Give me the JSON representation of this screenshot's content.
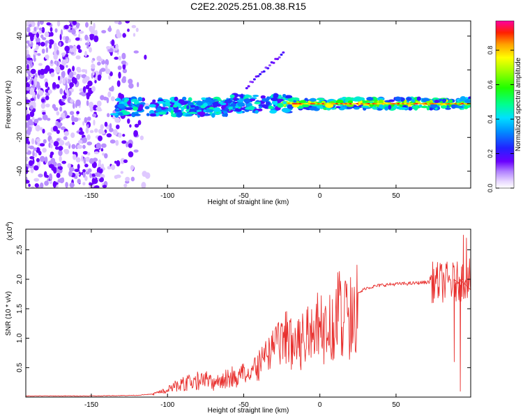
{
  "title": "C2E2.2025.251.08.38.R15",
  "chart_data": [
    {
      "type": "heatmap",
      "title": "C2E2.2025.251.08.38.R15",
      "xlabel": "Height of straight line (km)",
      "ylabel": "Frequency (Hz)",
      "xlim": [
        -193,
        99
      ],
      "ylim": [
        -50,
        49
      ],
      "xticks": [
        -150,
        -100,
        -50,
        0,
        50
      ],
      "xtick_labels": [
        "-150",
        "-100",
        "-50",
        "0",
        "50"
      ],
      "yticks": [
        -40,
        -20,
        0,
        20,
        40
      ],
      "ytick_labels": [
        "-40",
        "-20",
        "0",
        "20",
        "40"
      ],
      "colorbar": {
        "label": "Normalized spectral amplitude",
        "range": [
          0,
          0.97
        ],
        "ticks": [
          0.0,
          0.2,
          0.4,
          0.6,
          0.8
        ],
        "tick_labels": [
          "0.0",
          "0.2",
          "0.4",
          "0.6",
          "0.8"
        ]
      },
      "features": [
        {
          "name": "noise",
          "x_range": [
            -193,
            -113
          ],
          "y_range": [
            -50,
            49
          ],
          "amplitude": 0.12
        },
        {
          "name": "main-band",
          "x_range": [
            -135,
            99
          ],
          "center_hz": 0,
          "half_width_hz": 4,
          "amplitude_range": [
            0.15,
            0.97
          ]
        },
        {
          "name": "streak",
          "x": [
            -48,
            -24
          ],
          "y": [
            10,
            30
          ],
          "amplitude": 0.2
        }
      ]
    },
    {
      "type": "line",
      "xlabel": "Height of straight line (km)",
      "ylabel": "SNR (10 * v/v)",
      "scale_label": "(x10",
      "scale_exponent": "4",
      "scale_close": ")",
      "xlim": [
        -193,
        99
      ],
      "ylim": [
        0,
        2.85
      ],
      "xticks": [
        -150,
        -100,
        -50,
        0,
        50
      ],
      "xtick_labels": [
        "-150",
        "-100",
        "-50",
        "0",
        "50"
      ],
      "yticks": [
        0.5,
        1.0,
        1.5,
        2.0,
        2.5
      ],
      "ytick_labels": [
        "0.5",
        "1.0",
        "1.5",
        "2.0",
        "2.5"
      ],
      "series": [
        {
          "name": "SNR",
          "color": "#e8302e",
          "x": [
            -193,
            -150,
            -120,
            -110,
            -100,
            -95,
            -90,
            -80,
            -75,
            -70,
            -65,
            -60,
            -55,
            -50,
            -45,
            -40,
            -35,
            -30,
            -25,
            -20,
            -15,
            -10,
            -5,
            0,
            5,
            10,
            15,
            20,
            25,
            30,
            40,
            50,
            60,
            70,
            75,
            80,
            85,
            90,
            95,
            99
          ],
          "values": [
            0.02,
            0.02,
            0.03,
            0.05,
            0.12,
            0.2,
            0.25,
            0.3,
            0.32,
            0.25,
            0.3,
            0.4,
            0.35,
            0.45,
            0.5,
            0.6,
            0.75,
            0.95,
            1.0,
            1.05,
            1.0,
            1.1,
            1.3,
            1.3,
            1.4,
            1.45,
            1.55,
            1.6,
            1.75,
            1.85,
            1.9,
            1.92,
            1.93,
            1.95,
            1.95,
            1.95,
            1.95,
            1.95,
            2.0,
            2.05
          ]
        }
      ],
      "spikes": [
        {
          "x": 92,
          "value": 0.1
        },
        {
          "x": 88,
          "value": 0.6
        },
        {
          "x": 94,
          "value": 2.75
        },
        {
          "x": 96,
          "value": 2.7
        }
      ]
    }
  ]
}
